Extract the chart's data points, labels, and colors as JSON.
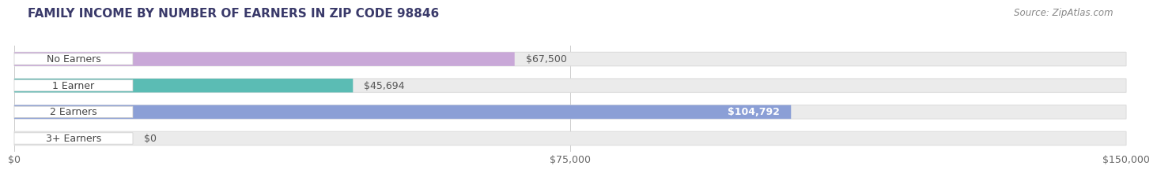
{
  "title": "FAMILY INCOME BY NUMBER OF EARNERS IN ZIP CODE 98846",
  "source": "Source: ZipAtlas.com",
  "categories": [
    "No Earners",
    "1 Earner",
    "2 Earners",
    "3+ Earners"
  ],
  "values": [
    67500,
    45694,
    104792,
    0
  ],
  "bar_colors": [
    "#c9a8d8",
    "#5bbcb4",
    "#8b9fd6",
    "#f4a8c0"
  ],
  "x_max": 150000,
  "x_ticks": [
    0,
    75000,
    150000
  ],
  "x_tick_labels": [
    "$0",
    "$75,000",
    "$150,000"
  ],
  "background_color": "#ffffff",
  "bar_bg_color": "#ebebeb",
  "title_fontsize": 11,
  "source_fontsize": 8.5,
  "label_fontsize": 9,
  "tick_fontsize": 9,
  "value_label_color_inside": "#ffffff",
  "value_label_color_outside": "#555555",
  "cat_label_color": "#444444"
}
